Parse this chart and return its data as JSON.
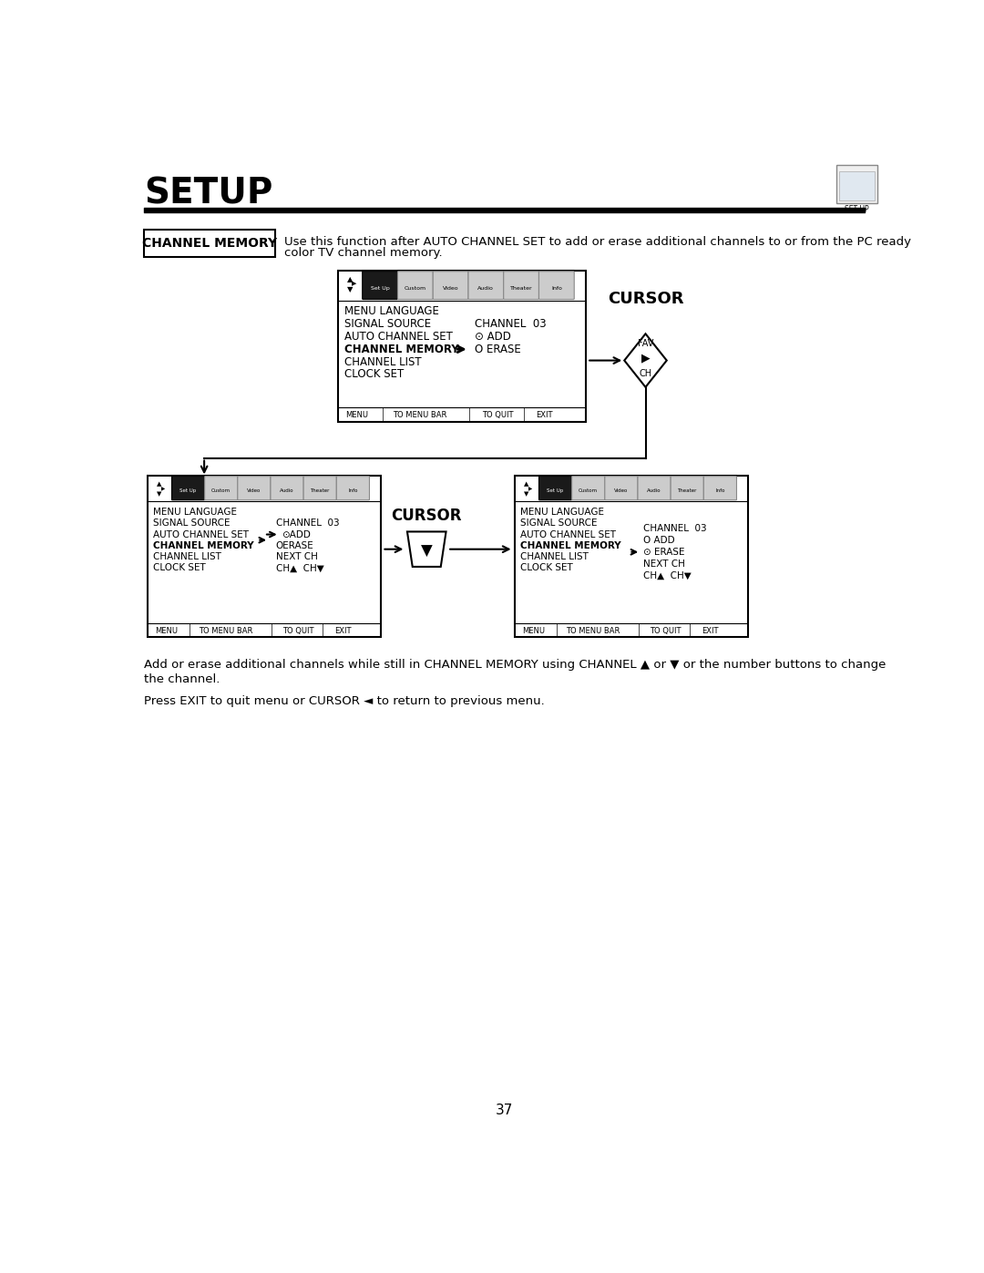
{
  "title": "SETUP",
  "page_number": "37",
  "bg": "#ffffff",
  "label_box_text": "CHANNEL MEMORY",
  "desc_line1": "Use this function after AUTO CHANNEL SET to add or erase additional channels to or from the PC ready",
  "desc_line2": "color TV channel memory.",
  "body_text1a": "Add or erase additional channels while still in CHANNEL MEMORY using CHANNEL ▲ or ▼ or the number buttons to change",
  "body_text1b": "the channel.",
  "body_text2": "Press EXIT to quit menu or CURSOR ◄ to return to previous menu.",
  "menu_items": [
    "MENU LANGUAGE",
    "SIGNAL SOURCE",
    "AUTO CHANNEL SET",
    "CHANNEL MEMORY",
    "CHANNEL LIST",
    "CLOCK SET"
  ],
  "icon_labels": [
    "Set Up",
    "Custom",
    "Video",
    "Audio",
    "Theater",
    "Info"
  ]
}
